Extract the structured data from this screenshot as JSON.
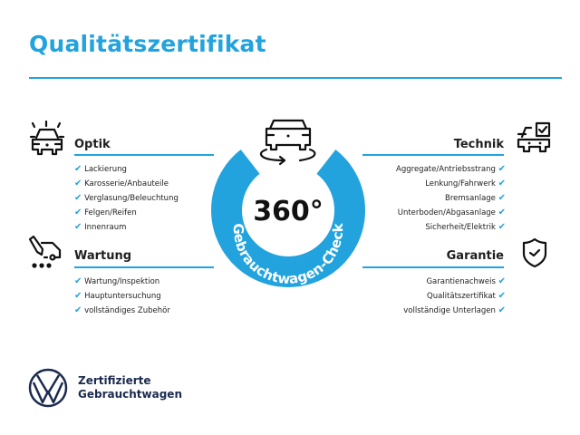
{
  "title": "Qualitätszertifikat",
  "accent_color": "#22a3dd",
  "center": {
    "degrees": "360°",
    "ring_text": "Gebrauchtwagen-Check",
    "icon": "car-rotate-icon"
  },
  "sections": {
    "optik": {
      "heading": "Optik",
      "icon": "car-lights-icon",
      "items": [
        "Lackierung",
        "Karosserie/Anbauteile",
        "Verglasung/Beleuchtung",
        "Felgen/Reifen",
        "Innenraum"
      ]
    },
    "wartung": {
      "heading": "Wartung",
      "icon": "oil-service-icon",
      "items": [
        "Wartung/Inspektion",
        "Hauptuntersuchung",
        "vollständiges Zubehör"
      ]
    },
    "technik": {
      "heading": "Technik",
      "icon": "car-checkbox-icon",
      "items": [
        "Aggregate/Antriebsstrang",
        "Lenkung/Fahrwerk",
        "Bremsanlage",
        "Unterboden/Abgasanlage",
        "Sicherheit/Elektrik"
      ]
    },
    "garantie": {
      "heading": "Garantie",
      "icon": "shield-check-icon",
      "items": [
        "Garantienachweis",
        "Qualitätszertifikat",
        "vollständige Unterlagen"
      ]
    }
  },
  "check_glyph": "✔",
  "footer": {
    "line1": "Zertifizierte",
    "line2": "Gebrauchtwagen",
    "logo": "vw-logo"
  }
}
